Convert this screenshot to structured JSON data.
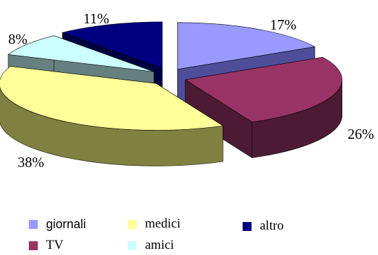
{
  "chart_data": {
    "type": "pie",
    "style": "3d-exploded",
    "title": "",
    "slices": [
      {
        "name": "giornali",
        "value": 17,
        "label": "17%",
        "color": "#9999ff",
        "side_color": "#4d4d99"
      },
      {
        "name": "TV",
        "value": 26,
        "label": "26%",
        "color": "#993366",
        "side_color": "#4d1a33"
      },
      {
        "name": "medici",
        "value": 38,
        "label": "38%",
        "color": "#ffff99",
        "side_color": "#808040"
      },
      {
        "name": "amici",
        "value": 8,
        "label": "8%",
        "color": "#ccffff",
        "side_color": "#668080"
      },
      {
        "name": "altro",
        "value": 11,
        "label": "11%",
        "color": "#000080",
        "side_color": "#000040"
      }
    ],
    "legend": {
      "placement": "bottom",
      "entries": [
        "giornali",
        "medici",
        "altro",
        "TV",
        "amici"
      ]
    }
  }
}
